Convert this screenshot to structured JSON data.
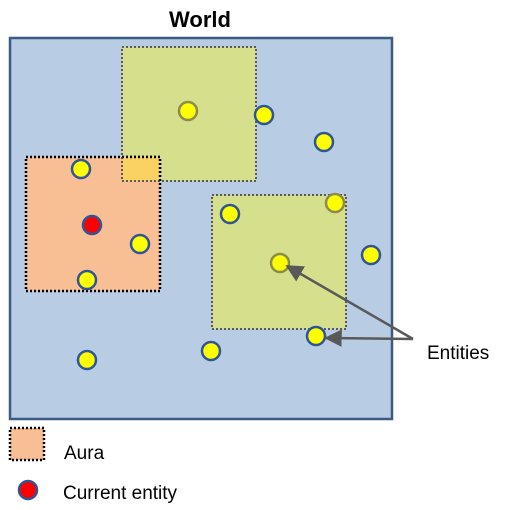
{
  "diagram": {
    "title": "World",
    "callout_label": "Entities",
    "legend": {
      "aura_label": "Aura",
      "current_label": "Current entity"
    }
  },
  "colors": {
    "world_fill": "#b8cce4",
    "world_border": "#3c5a86",
    "aura_fill": "#f8bf94",
    "other_aura_fill": "#d6e08c",
    "overlap_fill": "#fad264",
    "entity_fill": "#ffff00",
    "entity_border": "#2f5597",
    "current_fill": "#ff0000",
    "arrow": "#595959"
  }
}
